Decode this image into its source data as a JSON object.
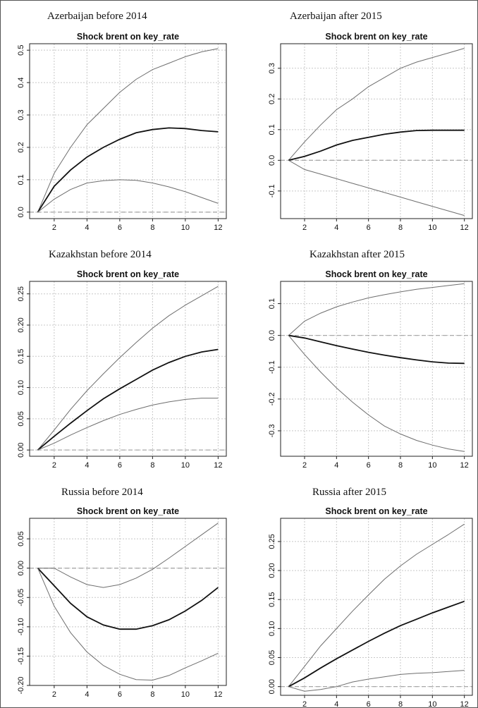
{
  "figure": {
    "colors": {
      "grid": "#c8c8c8",
      "zero_line": "#a9a9a9",
      "band": "#6e6e6e",
      "irf": "#111111",
      "axis": "#222222"
    }
  },
  "chart_data": [
    {
      "type": "line",
      "caption": "Azerbaijan before 2014",
      "title": "Shock brent on key_rate",
      "x": [
        1,
        2,
        3,
        4,
        5,
        6,
        7,
        8,
        9,
        10,
        11,
        12
      ],
      "xticks": [
        2,
        4,
        6,
        8,
        10,
        12
      ],
      "yticks": [
        "0.0",
        "0.1",
        "0.2",
        "0.3",
        "0.4",
        "0.5"
      ],
      "ylim": [
        -0.02,
        0.52
      ],
      "zero_line": 0.0,
      "series": [
        {
          "role": "upper",
          "values": [
            0.0,
            0.12,
            0.2,
            0.27,
            0.32,
            0.37,
            0.41,
            0.44,
            0.46,
            0.48,
            0.495,
            0.505
          ]
        },
        {
          "role": "irf",
          "values": [
            0.0,
            0.08,
            0.13,
            0.17,
            0.2,
            0.225,
            0.245,
            0.255,
            0.26,
            0.258,
            0.252,
            0.248
          ]
        },
        {
          "role": "lower",
          "values": [
            0.0,
            0.04,
            0.07,
            0.09,
            0.097,
            0.1,
            0.098,
            0.09,
            0.078,
            0.063,
            0.045,
            0.027
          ]
        }
      ]
    },
    {
      "type": "line",
      "caption": "Azerbaijan after 2015",
      "title": "Shock brent on key_rate",
      "x": [
        1,
        2,
        3,
        4,
        5,
        6,
        7,
        8,
        9,
        10,
        11,
        12
      ],
      "xticks": [
        2,
        4,
        6,
        8,
        10,
        12
      ],
      "yticks": [
        "-0.1",
        "0.0",
        "0.1",
        "0.2",
        "0.3"
      ],
      "ylim": [
        -0.19,
        0.38
      ],
      "zero_line": 0.0,
      "series": [
        {
          "role": "upper",
          "values": [
            0.0,
            0.06,
            0.115,
            0.165,
            0.2,
            0.24,
            0.27,
            0.3,
            0.32,
            0.335,
            0.35,
            0.365
          ]
        },
        {
          "role": "irf",
          "values": [
            0.0,
            0.013,
            0.03,
            0.05,
            0.065,
            0.075,
            0.085,
            0.092,
            0.097,
            0.098,
            0.098,
            0.098
          ]
        },
        {
          "role": "lower",
          "values": [
            0.0,
            -0.03,
            -0.045,
            -0.06,
            -0.075,
            -0.09,
            -0.105,
            -0.12,
            -0.135,
            -0.15,
            -0.165,
            -0.18
          ]
        }
      ]
    },
    {
      "type": "line",
      "caption": "Kazakhstan before 2014",
      "title": "Shock brent on key_rate",
      "x": [
        1,
        2,
        3,
        4,
        5,
        6,
        7,
        8,
        9,
        10,
        11,
        12
      ],
      "xticks": [
        2,
        4,
        6,
        8,
        10,
        12
      ],
      "yticks": [
        "0.00",
        "0.05",
        "0.10",
        "0.15",
        "0.20",
        "0.25"
      ],
      "ylim": [
        -0.01,
        0.27
      ],
      "zero_line": 0.0,
      "series": [
        {
          "role": "upper",
          "values": [
            0.0,
            0.032,
            0.065,
            0.095,
            0.122,
            0.148,
            0.172,
            0.195,
            0.215,
            0.232,
            0.247,
            0.262
          ]
        },
        {
          "role": "irf",
          "values": [
            0.0,
            0.022,
            0.043,
            0.063,
            0.082,
            0.098,
            0.113,
            0.128,
            0.14,
            0.15,
            0.157,
            0.161
          ]
        },
        {
          "role": "lower",
          "values": [
            0.0,
            0.011,
            0.024,
            0.036,
            0.047,
            0.057,
            0.065,
            0.072,
            0.077,
            0.081,
            0.083,
            0.083
          ]
        }
      ]
    },
    {
      "type": "line",
      "caption": "Kazakhstan after 2015",
      "title": "Shock brent on key_rate",
      "x": [
        1,
        2,
        3,
        4,
        5,
        6,
        7,
        8,
        9,
        10,
        11,
        12
      ],
      "xticks": [
        2,
        4,
        6,
        8,
        10,
        12
      ],
      "yticks": [
        "-0.3",
        "-0.2",
        "-0.1",
        "0.0",
        "0.1"
      ],
      "ylim": [
        -0.38,
        0.17
      ],
      "zero_line": 0.0,
      "series": [
        {
          "role": "upper",
          "values": [
            0.0,
            0.045,
            0.07,
            0.09,
            0.105,
            0.118,
            0.128,
            0.137,
            0.145,
            0.151,
            0.157,
            0.163
          ]
        },
        {
          "role": "irf",
          "values": [
            0.0,
            -0.008,
            -0.02,
            -0.032,
            -0.043,
            -0.053,
            -0.062,
            -0.07,
            -0.077,
            -0.083,
            -0.087,
            -0.088
          ]
        },
        {
          "role": "lower",
          "values": [
            0.0,
            -0.06,
            -0.115,
            -0.165,
            -0.21,
            -0.25,
            -0.285,
            -0.31,
            -0.33,
            -0.345,
            -0.357,
            -0.365
          ]
        }
      ]
    },
    {
      "type": "line",
      "caption": "Russia before 2014",
      "title": "Shock brent on key_rate",
      "x": [
        1,
        2,
        3,
        4,
        5,
        6,
        7,
        8,
        9,
        10,
        11,
        12
      ],
      "xticks": [
        2,
        4,
        6,
        8,
        10,
        12
      ],
      "yticks": [
        "-0.20",
        "-0.15",
        "-0.10",
        "-0.05",
        "0.00",
        "0.05"
      ],
      "ylim": [
        -0.2,
        0.085
      ],
      "zero_line": 0.0,
      "series": [
        {
          "role": "upper",
          "values": [
            0.0,
            0.0,
            -0.015,
            -0.028,
            -0.033,
            -0.028,
            -0.017,
            -0.002,
            0.017,
            0.037,
            0.057,
            0.077
          ]
        },
        {
          "role": "irf",
          "values": [
            0.0,
            -0.03,
            -0.06,
            -0.083,
            -0.097,
            -0.104,
            -0.104,
            -0.098,
            -0.088,
            -0.073,
            -0.055,
            -0.033
          ]
        },
        {
          "role": "lower",
          "values": [
            0.0,
            -0.065,
            -0.11,
            -0.143,
            -0.166,
            -0.181,
            -0.19,
            -0.191,
            -0.183,
            -0.17,
            -0.158,
            -0.145
          ]
        }
      ]
    },
    {
      "type": "line",
      "caption": "Russia after 2015",
      "title": "Shock brent on key_rate",
      "x": [
        1,
        2,
        3,
        4,
        5,
        6,
        7,
        8,
        9,
        10,
        11,
        12
      ],
      "xticks": [
        2,
        4,
        6,
        8,
        10,
        12
      ],
      "yticks": [
        "0.00",
        "0.05",
        "0.10",
        "0.15",
        "0.20",
        "0.25"
      ],
      "ylim": [
        -0.015,
        0.29
      ],
      "zero_line": 0.0,
      "series": [
        {
          "role": "upper",
          "values": [
            0.0,
            0.035,
            0.07,
            0.1,
            0.13,
            0.158,
            0.185,
            0.208,
            0.228,
            0.245,
            0.262,
            0.28
          ]
        },
        {
          "role": "irf",
          "values": [
            0.0,
            0.015,
            0.032,
            0.048,
            0.063,
            0.078,
            0.092,
            0.105,
            0.116,
            0.127,
            0.137,
            0.147
          ]
        },
        {
          "role": "lower",
          "values": [
            0.0,
            -0.008,
            -0.005,
            0.0,
            0.008,
            0.013,
            0.017,
            0.021,
            0.023,
            0.024,
            0.026,
            0.028
          ]
        }
      ]
    }
  ]
}
